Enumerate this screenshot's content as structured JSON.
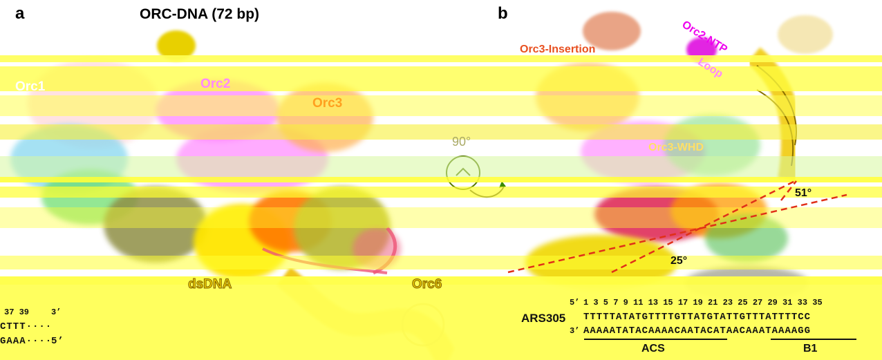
{
  "panel_a": {
    "letter": "a",
    "title": "ORC-DNA (72 bp)",
    "labels": {
      "orc1": "Orc1",
      "orc2": "Orc2",
      "orc3": "Orc3",
      "dsdna": "dsDNA",
      "orc6": "Orc6",
      "rotation": "90°"
    },
    "sequence_fragment": {
      "numbers": "37 39",
      "end_top": "3’",
      "top": "CTTT····",
      "bottom": "GAAA····",
      "end_bottom": "5’"
    }
  },
  "panel_b": {
    "letter": "b",
    "labels": {
      "orc3_insertion": "Orc3-Insertion",
      "orc2_ntp": "Orc2-NTP",
      "loop": "Loop",
      "orc3_whd": "Orc3-WHD",
      "angle_large": "51°",
      "angle_small": "25°"
    },
    "sequence": {
      "name": "ARS305",
      "five_prime": "5’",
      "three_prime": "3’",
      "numbers": "1 3 5 7 9 11 13 15 17 19 21 23 25 27 29 31 33 35",
      "top": "TTTTTATATGTTTTGTTATGTATTGTTTATTTTCC",
      "bottom": "AAAAATATACAAAACAATACATAACAAATAAAAGG",
      "regions": [
        {
          "name": "ACS"
        },
        {
          "name": "B1"
        }
      ]
    }
  },
  "colors": {
    "glitch_yellow": "#ffff44",
    "density_yellow": "#f3e200",
    "orc1": "#ffd2d2",
    "orc2": "#ff88ff",
    "orc3": "#ffa020",
    "orc4": "#44bb44",
    "orc5": "#9b9b4c",
    "orc6": "#e8c800",
    "dna": "#ffd000",
    "insertion": "#e85020",
    "ntp": "#ee00ee",
    "pink_loop": "#ee6688",
    "cyan": "#88d8f0",
    "angle_line": "#e03018"
  }
}
